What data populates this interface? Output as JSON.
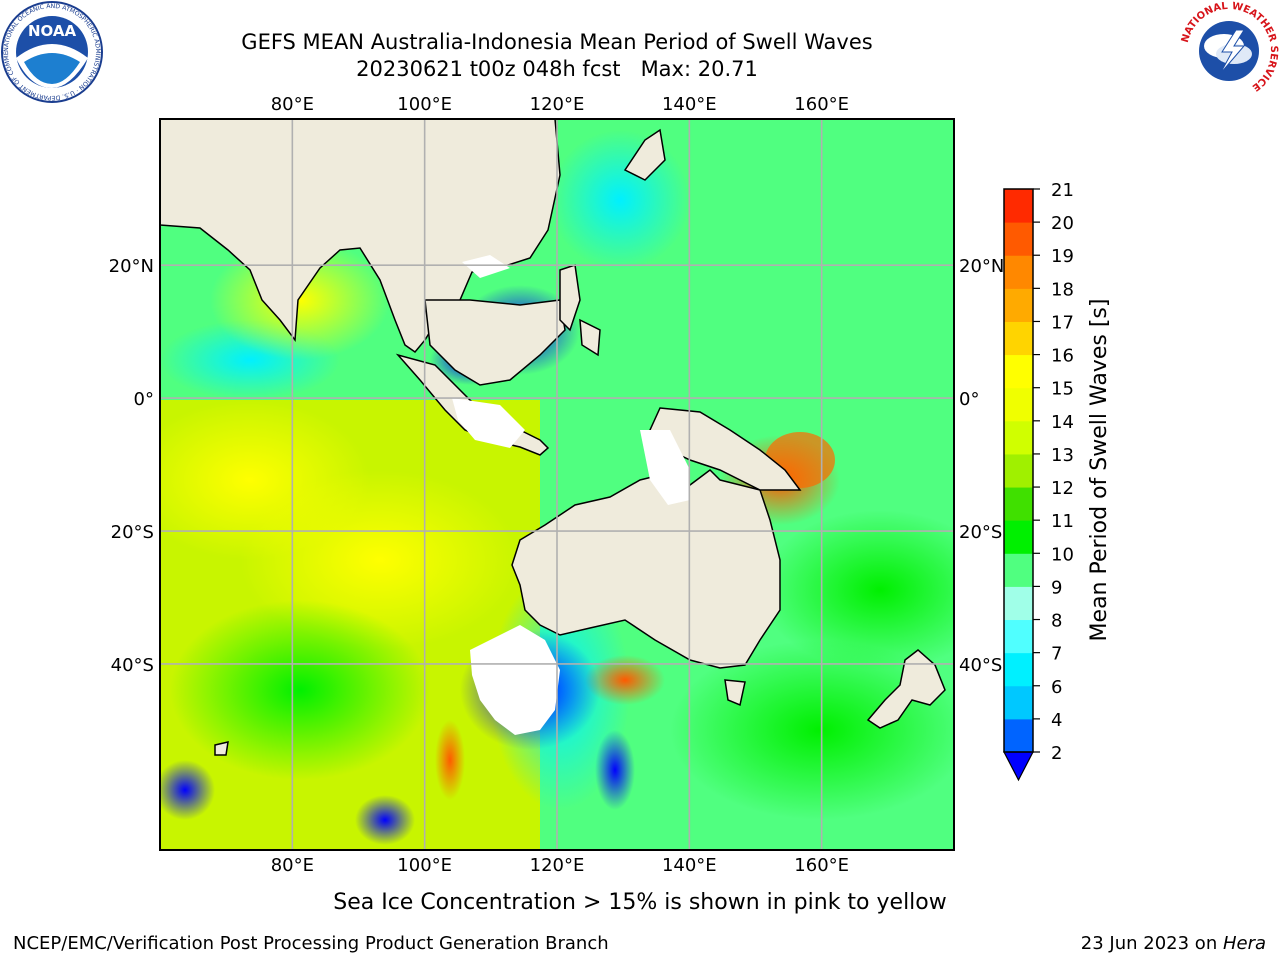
{
  "title": {
    "line1": "GEFS MEAN Australia-Indonesia Mean Period of Swell Waves",
    "line2": "20230621 t00z 048h fcst   Max: 20.71"
  },
  "logos": {
    "left": "NOAA",
    "left_ring": "NATIONAL OCEANIC AND ATMOSPHERIC ADMINISTRATION · U.S. DEPARTMENT OF COMMERCE",
    "right_ring": "NATIONAL WEATHER SERVICE"
  },
  "map": {
    "lon_labels": [
      "80°E",
      "100°E",
      "120°E",
      "140°E",
      "160°E"
    ],
    "lat_labels": [
      "20°N",
      "0°",
      "20°S",
      "40°S"
    ],
    "lon_values": [
      80,
      100,
      120,
      140,
      160
    ],
    "lat_values": [
      20,
      0,
      -20,
      -40
    ],
    "extent": {
      "lon": [
        60,
        180
      ],
      "lat": [
        -68,
        42
      ]
    },
    "land_color": "#efebdc",
    "grid_color": "#b0b0b0"
  },
  "colorbar": {
    "label": "Mean Period of Swell Waves [s]",
    "ticks": [
      "2",
      "4",
      "6",
      "7",
      "8",
      "9",
      "10",
      "11",
      "12",
      "13",
      "14",
      "15",
      "16",
      "17",
      "18",
      "19",
      "20",
      "21"
    ],
    "colors": [
      "#0064ff",
      "#00c8ff",
      "#00f0ff",
      "#50ffff",
      "#a0ffe8",
      "#50ff80",
      "#00f000",
      "#40e000",
      "#a0f000",
      "#d0ff00",
      "#f0ff00",
      "#ffff00",
      "#ffd400",
      "#ffaa00",
      "#ff8800",
      "#ff5a00",
      "#ff2a00",
      "#ff0000"
    ],
    "under_color": "#0000ff"
  },
  "note": "Sea Ice Concentration > 15% is shown in pink to yellow",
  "footer": {
    "left": "NCEP/EMC/Verification Post Processing Product Generation Branch",
    "date": "23 Jun 2023 on ",
    "machine": "Hera"
  }
}
